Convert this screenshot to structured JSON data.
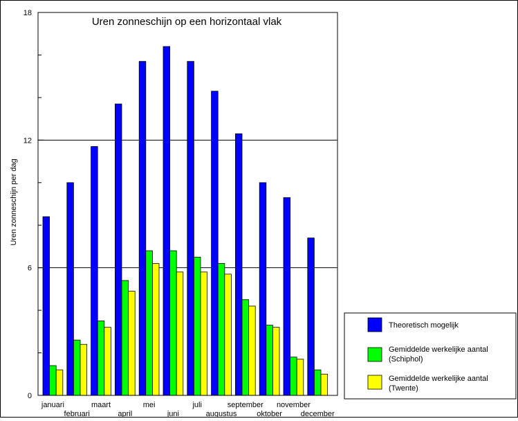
{
  "chart_data": {
    "type": "bar",
    "title": "Uren zonneschijn op een horizontaal vlak",
    "xlabel": "",
    "ylabel": "Uren zonneschijn per dag",
    "ylim": [
      0,
      18
    ],
    "yticks": [
      0,
      6,
      12,
      18
    ],
    "grid_lines_at": [
      6,
      12
    ],
    "legend_position": "bottom-right",
    "categories": [
      "januari",
      "februari",
      "maart",
      "april",
      "mei",
      "juni",
      "juli",
      "augustus",
      "september",
      "oktober",
      "november",
      "december"
    ],
    "series": [
      {
        "name": "Theoretisch mogelijk",
        "color": "#0000ff",
        "values": [
          8.4,
          10.0,
          11.7,
          13.7,
          15.7,
          16.4,
          15.7,
          14.3,
          12.3,
          10.0,
          9.3,
          7.4
        ]
      },
      {
        "name": "Gemiddelde werkelijke aantal (Schiphol)",
        "color": "#00ff00",
        "values": [
          1.4,
          2.6,
          3.5,
          5.4,
          6.8,
          6.8,
          6.5,
          6.2,
          4.5,
          3.3,
          1.8,
          1.2
        ]
      },
      {
        "name": "Gemiddelde werkelijke aantal (Twente)",
        "color": "#ffff00",
        "values": [
          1.2,
          2.4,
          3.2,
          4.9,
          6.2,
          5.8,
          5.8,
          5.7,
          4.2,
          3.2,
          1.7,
          1.0
        ]
      }
    ],
    "legend": [
      {
        "line1": "Theoretisch mogelijk",
        "line2": ""
      },
      {
        "line1": "Gemiddelde werkelijke aantal",
        "line2": "(Schiphol)"
      },
      {
        "line1": "Gemiddelde werkelijke aantal",
        "line2": "(Twente)"
      }
    ]
  }
}
